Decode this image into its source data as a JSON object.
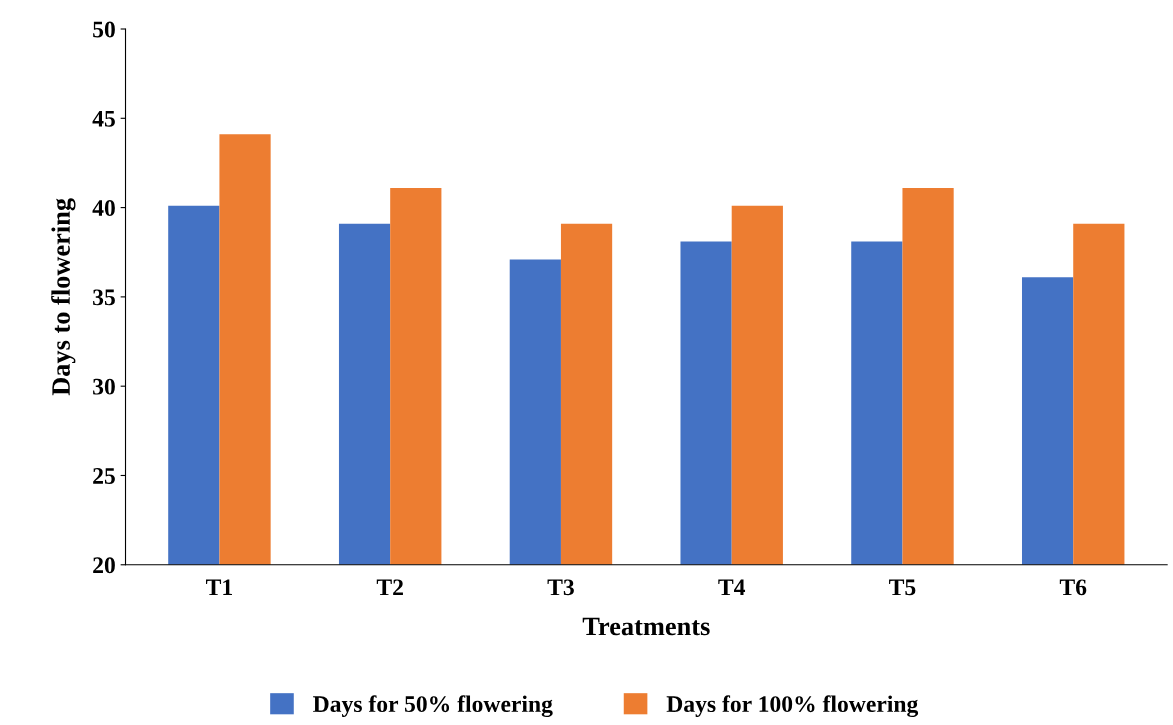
{
  "chart_data": {
    "type": "bar",
    "xlabel": "Treatments",
    "ylabel": "Days to flowering",
    "categories": [
      "T1",
      "T2",
      "T3",
      "T4",
      "T5",
      "T6"
    ],
    "series": [
      {
        "name": "Days for 50% flowering",
        "color": "#4472c4",
        "values": [
          40.1,
          39.1,
          37.1,
          38.1,
          38.1,
          36.1
        ]
      },
      {
        "name": "Days for 100% flowering",
        "color": "#ed7d31",
        "values": [
          44.1,
          41.1,
          39.1,
          40.1,
          41.1,
          39.1
        ]
      }
    ],
    "ylim": [
      20,
      50
    ],
    "yticks": [
      20,
      25,
      30,
      35,
      40,
      45,
      50
    ],
    "grid": false,
    "legend": "bottom"
  }
}
